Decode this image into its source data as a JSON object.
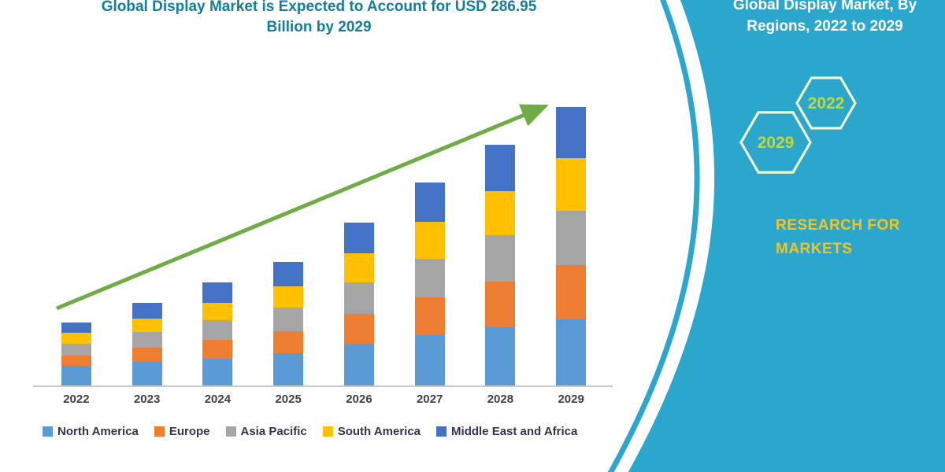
{
  "header": {
    "title_line1": "Global Display Market is Expected to Account for USD 286.95",
    "title_line2": "Billion by 2029",
    "title_color": "#137d9e"
  },
  "chart_data": {
    "type": "bar",
    "stacked": true,
    "title": "Global Display Market is Expected to Account for USD 286.95 Billion by 2029",
    "unit": "USD Billion",
    "categories": [
      "2022",
      "2023",
      "2024",
      "2025",
      "2026",
      "2027",
      "2028",
      "2029"
    ],
    "series": [
      {
        "name": "North America",
        "color": "#5B9BD5",
        "values": [
          20,
          24,
          28,
          33,
          43,
          52,
          60,
          68
        ]
      },
      {
        "name": "Europe",
        "color": "#ED7D31",
        "values": [
          11,
          15,
          19,
          23,
          31,
          39,
          47,
          56
        ]
      },
      {
        "name": "Asia Pacific",
        "color": "#A5A5A5",
        "values": [
          12,
          16,
          20,
          24,
          32,
          40,
          48,
          56
        ]
      },
      {
        "name": "South America",
        "color": "#FFC000",
        "values": [
          11,
          14,
          18,
          22,
          30,
          38,
          45,
          54
        ]
      },
      {
        "name": "Middle East and Africa",
        "color": "#4472C4",
        "values": [
          11,
          16,
          21,
          25,
          32,
          40,
          48,
          53
        ]
      }
    ],
    "totals": [
      65,
      85,
      106,
      127,
      168,
      209,
      248,
      287
    ],
    "xlabel": "",
    "ylabel": "",
    "ylim": [
      0,
      300
    ],
    "grid": false,
    "legend_position": "bottom",
    "trend_arrow": true,
    "trend_arrow_color": "#6FAC46",
    "axis_label_color": "#404040"
  },
  "side_panel": {
    "bg_color": "#2BA7CE",
    "title_line1": "Global Display Market, By",
    "title_line2": "Regions, 2022 to 2029",
    "hexagons": [
      {
        "label": "2029"
      },
      {
        "label": "2022"
      }
    ],
    "hexagon_outline_color": "#EDF5D2",
    "hexagon_text_color": "#C7D92B",
    "brand_line1": "RESEARCH FOR",
    "brand_line2": "MARKETS",
    "brand_color": "#F5C51B"
  }
}
